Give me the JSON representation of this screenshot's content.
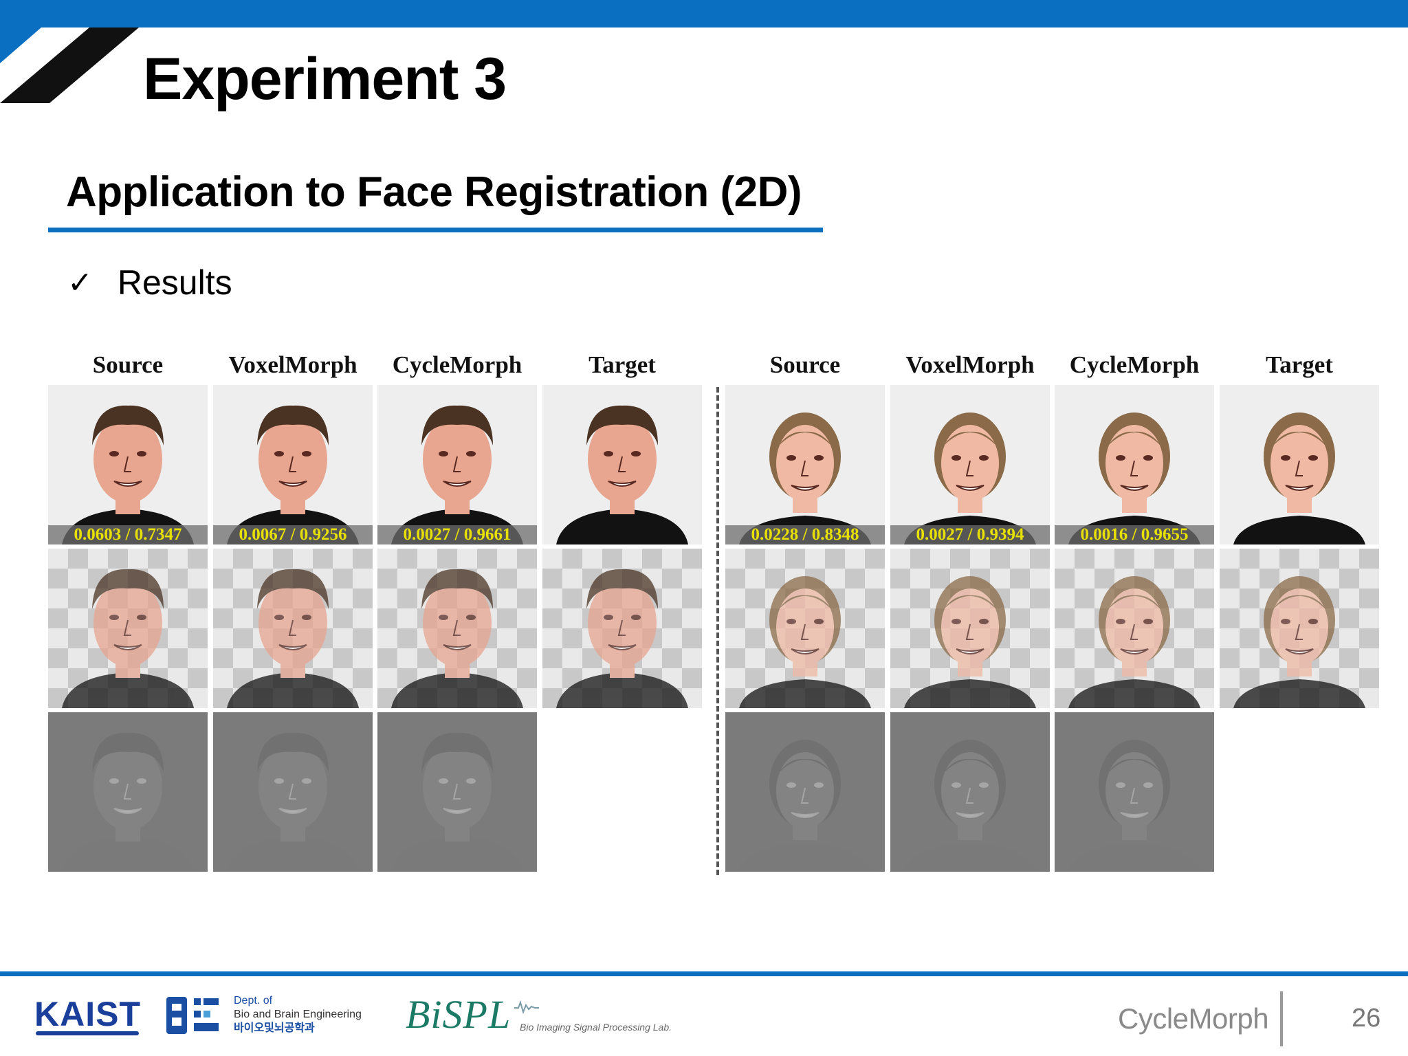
{
  "slide": {
    "title": "Experiment 3",
    "subtitle": "Application to Face Registration (2D)",
    "bullet": "Results",
    "bullet_marker": "check-icon"
  },
  "figure": {
    "left_group": {
      "headers": [
        "Source",
        "VoxelMorph",
        "CycleMorph",
        "Target"
      ],
      "metrics": [
        "0.0603 / 0.7347",
        "0.0067 / 0.9256",
        "0.0027 / 0.9661"
      ]
    },
    "right_group": {
      "headers": [
        "Source",
        "VoxelMorph",
        "CycleMorph",
        "Target"
      ],
      "metrics": [
        "0.0228 / 0.8348",
        "0.0027 / 0.9394",
        "0.0016 / 0.9655"
      ]
    },
    "colors": {
      "metric_text": "#e8e000",
      "photo_background": "#eeeeee",
      "difference_background": "#7b7b7b",
      "checker_light": "#e9e9e9",
      "checker_dark": "#c8c8c8"
    }
  },
  "footer": {
    "kaist": "KAIST",
    "dept_line1": "Dept. of",
    "dept_line2": "Bio and Brain Engineering",
    "dept_line3": "바이오및뇌공학과",
    "lab_name": "BiSPL",
    "lab_full": "Bio Imaging Signal Processing Lab.",
    "project": "CycleMorph",
    "page_number": "26"
  },
  "theme": {
    "accent": "#0b6fc1",
    "text": "#000000"
  }
}
